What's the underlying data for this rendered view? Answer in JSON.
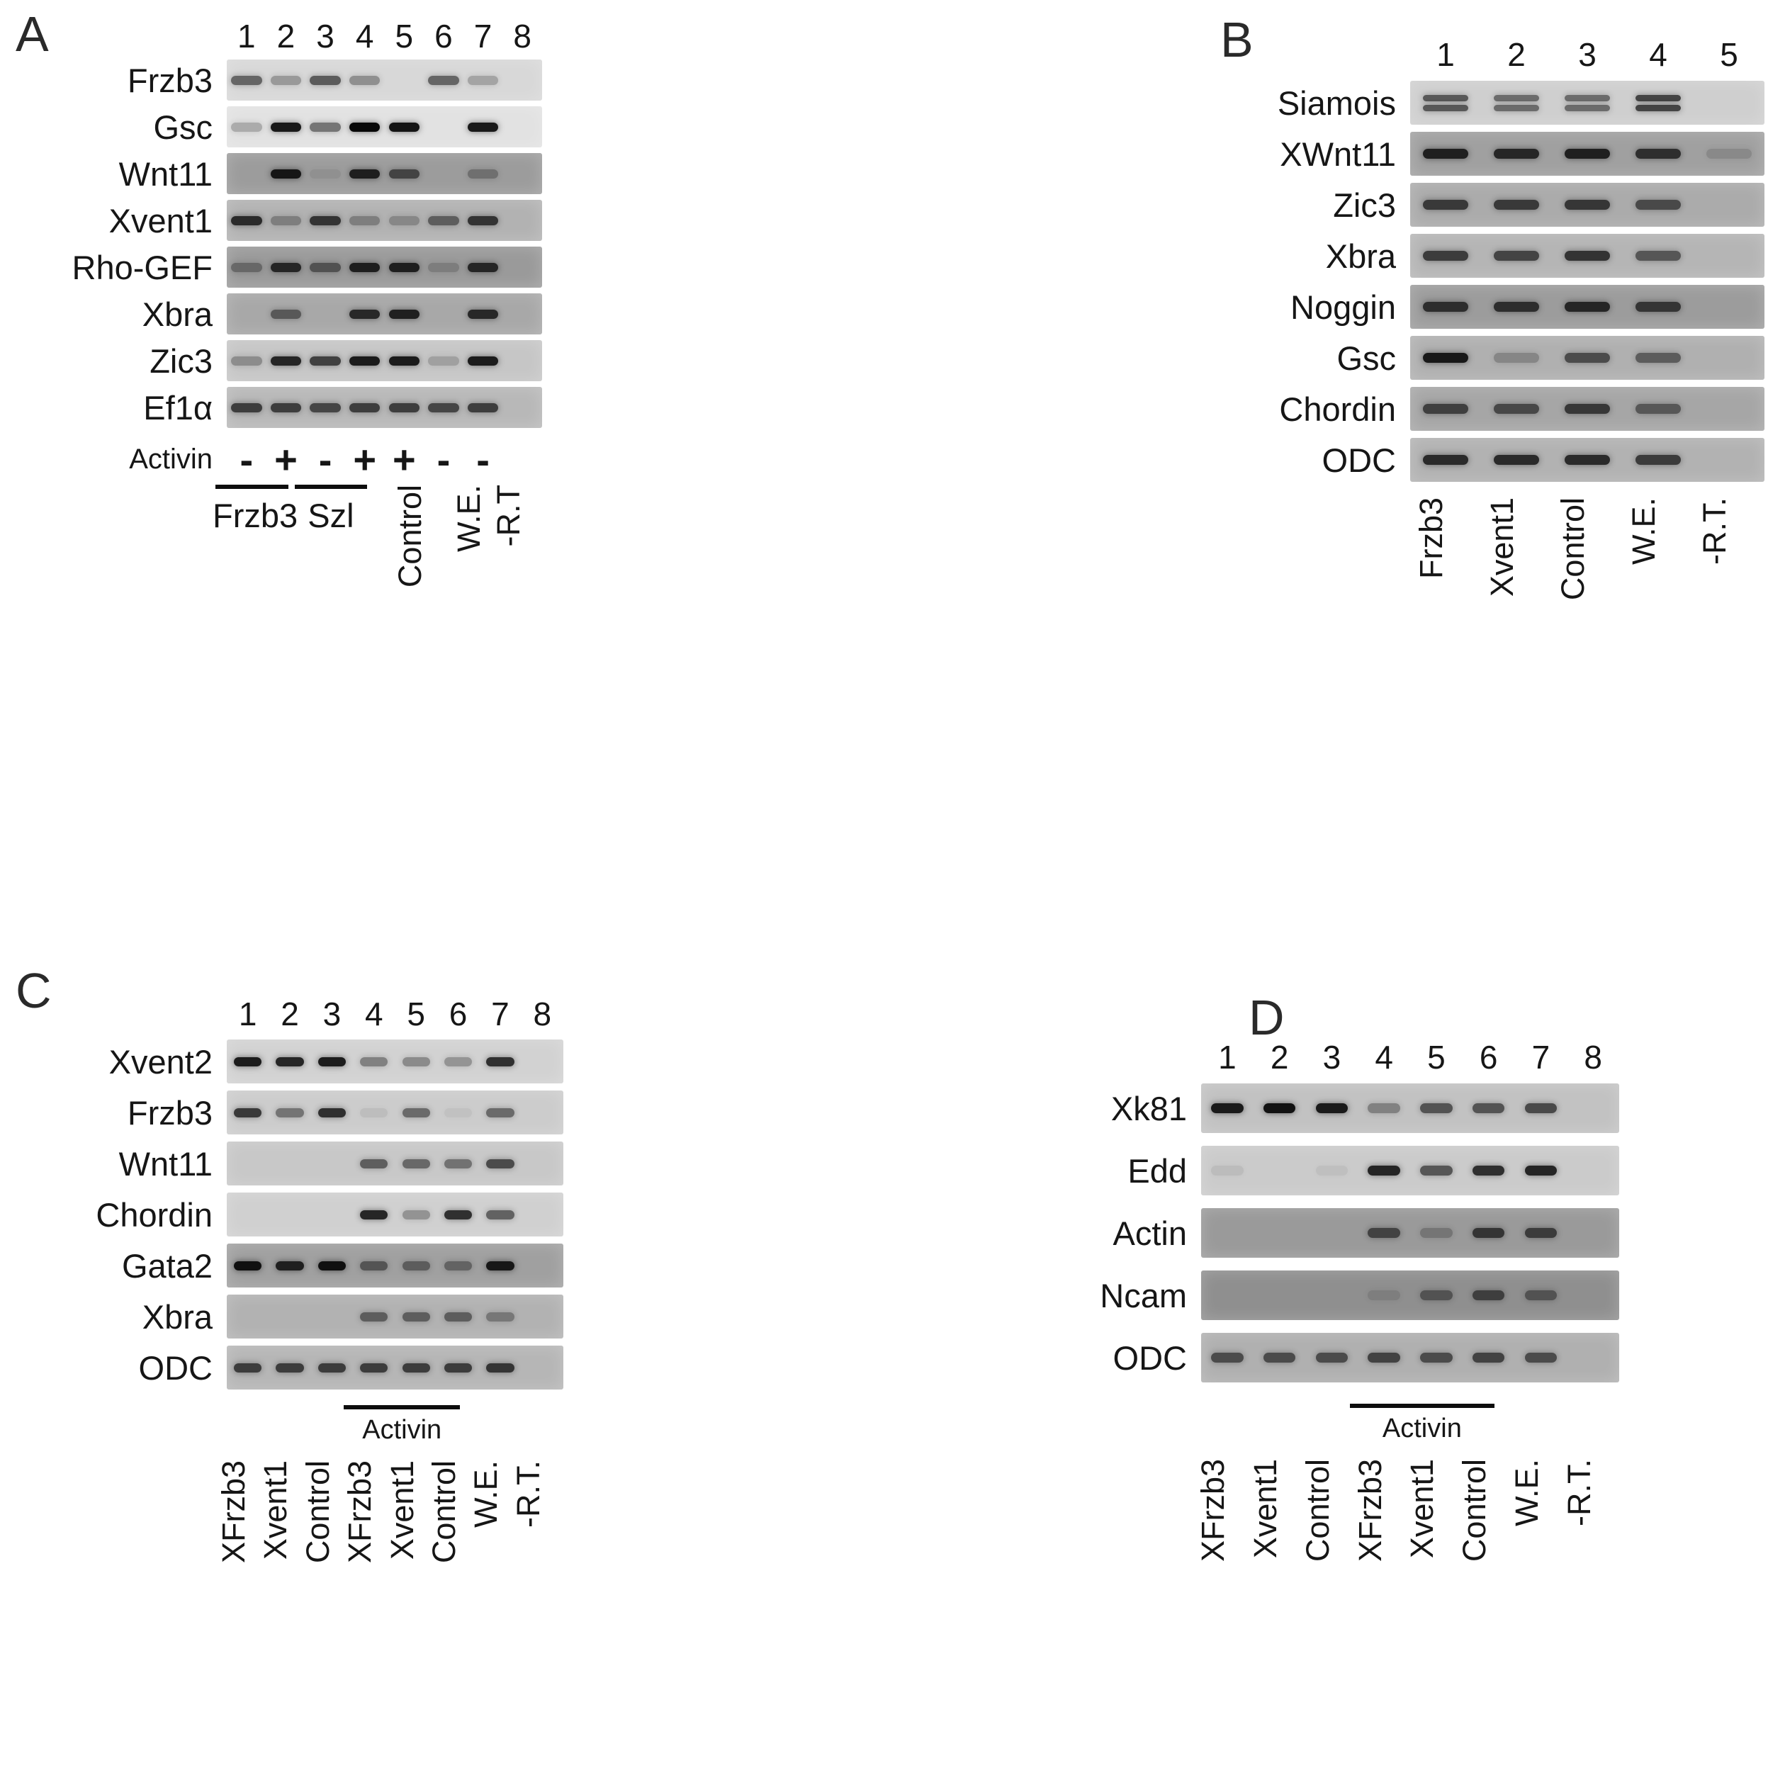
{
  "figure": {
    "description": "RT-PCR gel electrophoresis figure with four panels",
    "background": "#ffffff",
    "band_color": "#0a0a0a"
  },
  "panels": [
    {
      "id": "A",
      "letter": "A",
      "lanes": [
        "1",
        "2",
        "3",
        "4",
        "5",
        "6",
        "7",
        "8"
      ],
      "rows": [
        {
          "label": "Frzb3",
          "bg": "#d8d8d8",
          "bands": [
            0.55,
            0.3,
            0.6,
            0.35,
            0,
            0.55,
            0.25,
            0
          ]
        },
        {
          "label": "Gsc",
          "bg": "#e2e2e2",
          "bands": [
            0.25,
            0.92,
            0.5,
            1.0,
            0.95,
            0,
            0.92,
            0
          ]
        },
        {
          "label": "Wnt11",
          "bg": "#9c9c9c",
          "bands": [
            0,
            0.9,
            0.08,
            0.85,
            0.6,
            0,
            0.3,
            0
          ]
        },
        {
          "label": "Xvent1",
          "bg": "#b2b2b2",
          "bands": [
            0.8,
            0.3,
            0.75,
            0.3,
            0.25,
            0.5,
            0.75,
            0
          ]
        },
        {
          "label": "Rho-GEF",
          "bg": "#9a9a9a",
          "bands": [
            0.35,
            0.8,
            0.5,
            0.85,
            0.85,
            0.2,
            0.8,
            0
          ]
        },
        {
          "label": "Xbra",
          "bg": "#a8a8a8",
          "bands": [
            0,
            0.5,
            0,
            0.8,
            0.85,
            0,
            0.8,
            0
          ]
        },
        {
          "label": "Zic3",
          "bg": "#c6c6c6",
          "bands": [
            0.3,
            0.85,
            0.7,
            0.9,
            0.9,
            0.2,
            0.9,
            0
          ]
        },
        {
          "label": "Ef1α",
          "bg": "#b8b8b8",
          "bands": [
            0.7,
            0.7,
            0.65,
            0.7,
            0.7,
            0.65,
            0.7,
            0
          ]
        }
      ],
      "footer": {
        "treatment_label": "Activin",
        "signs": [
          "-",
          "+",
          "-",
          "+",
          "+",
          "-",
          "-",
          ""
        ],
        "groups": [
          {
            "label": "Frzb3",
            "from": 1,
            "to": 2
          },
          {
            "label": "Szl",
            "from": 3,
            "to": 4
          }
        ],
        "rotated": [
          {
            "label": "Control",
            "lane": 5.5
          },
          {
            "label": "W.E.",
            "lane": 7
          },
          {
            "label": "-R.T",
            "lane": 8
          }
        ]
      }
    },
    {
      "id": "B",
      "letter": "B",
      "lanes": [
        "1",
        "2",
        "3",
        "4",
        "5"
      ],
      "rows": [
        {
          "label": "Siamois",
          "bg": "#cfcfcf",
          "doublet": true,
          "bands": [
            0.6,
            0.5,
            0.5,
            0.7,
            0
          ]
        },
        {
          "label": "XWnt11",
          "bg": "#a0a0a0",
          "bands": [
            0.85,
            0.8,
            0.85,
            0.75,
            0.15
          ]
        },
        {
          "label": "Zic3",
          "bg": "#ababab",
          "bands": [
            0.7,
            0.7,
            0.72,
            0.6,
            0
          ]
        },
        {
          "label": "Xbra",
          "bg": "#b5b5b5",
          "bands": [
            0.7,
            0.65,
            0.75,
            0.55,
            0
          ]
        },
        {
          "label": "Noggin",
          "bg": "#9c9c9c",
          "bands": [
            0.75,
            0.75,
            0.8,
            0.7,
            0
          ]
        },
        {
          "label": "Gsc",
          "bg": "#b0b0b0",
          "bands": [
            0.9,
            0.25,
            0.6,
            0.5,
            0
          ]
        },
        {
          "label": "Chordin",
          "bg": "#a6a6a6",
          "bands": [
            0.65,
            0.6,
            0.7,
            0.5,
            0
          ]
        },
        {
          "label": "ODC",
          "bg": "#b2b2b2",
          "bands": [
            0.8,
            0.8,
            0.8,
            0.7,
            0
          ]
        }
      ],
      "footer": {
        "rotated": [
          {
            "label": "Frzb3",
            "lane": 1
          },
          {
            "label": "Xvent1",
            "lane": 2
          },
          {
            "label": "Control",
            "lane": 3
          },
          {
            "label": "W.E.",
            "lane": 4
          },
          {
            "label": "-R.T.",
            "lane": 5
          }
        ]
      }
    },
    {
      "id": "C",
      "letter": "C",
      "lanes": [
        "1",
        "2",
        "3",
        "4",
        "5",
        "6",
        "7",
        "8"
      ],
      "rows": [
        {
          "label": "Xvent2",
          "bg": "#d2d2d2",
          "bands": [
            0.9,
            0.85,
            0.9,
            0.4,
            0.35,
            0.3,
            0.8,
            0
          ]
        },
        {
          "label": "Frzb3",
          "bg": "#cccccc",
          "bands": [
            0.75,
            0.45,
            0.8,
            0.08,
            0.5,
            0.05,
            0.5,
            0
          ]
        },
        {
          "label": "Wnt11",
          "bg": "#c8c8c8",
          "bands": [
            0,
            0,
            0,
            0.55,
            0.5,
            0.45,
            0.65,
            0
          ]
        },
        {
          "label": "Chordin",
          "bg": "#d0d0d0",
          "bands": [
            0,
            0,
            0,
            0.85,
            0.3,
            0.8,
            0.55,
            0
          ]
        },
        {
          "label": "Gata2",
          "bg": "#a0a0a0",
          "bands": [
            0.95,
            0.85,
            0.95,
            0.5,
            0.45,
            0.4,
            0.9,
            0
          ]
        },
        {
          "label": "Xbra",
          "bg": "#b2b2b2",
          "bands": [
            0,
            0,
            0,
            0.5,
            0.5,
            0.5,
            0.35,
            0
          ]
        },
        {
          "label": "ODC",
          "bg": "#b6b6b6",
          "bands": [
            0.7,
            0.7,
            0.7,
            0.7,
            0.7,
            0.7,
            0.75,
            0
          ]
        }
      ],
      "footer": {
        "treatment_label": "Activin",
        "treatment_span": {
          "from": 4,
          "to": 6
        },
        "rotated": [
          {
            "label": "XFrzb3",
            "lane": 1
          },
          {
            "label": "Xvent1",
            "lane": 2
          },
          {
            "label": "Control",
            "lane": 3
          },
          {
            "label": "XFrzb3",
            "lane": 4
          },
          {
            "label": "Xvent1",
            "lane": 5
          },
          {
            "label": "Control",
            "lane": 6
          },
          {
            "label": "W.E.",
            "lane": 7
          },
          {
            "label": "-R.T.",
            "lane": 8
          }
        ]
      }
    },
    {
      "id": "D",
      "letter": "D",
      "lanes": [
        "1",
        "2",
        "3",
        "4",
        "5",
        "6",
        "7",
        "8"
      ],
      "rows": [
        {
          "label": "Xk81",
          "bg": "#c2c2c2",
          "bands": [
            0.9,
            0.95,
            0.9,
            0.35,
            0.6,
            0.6,
            0.65,
            0
          ]
        },
        {
          "label": "Edd",
          "bg": "#cbcbcb",
          "bands": [
            0.08,
            0,
            0.06,
            0.85,
            0.6,
            0.8,
            0.85,
            0
          ]
        },
        {
          "label": "Actin",
          "bg": "#9a9a9a",
          "bands": [
            0,
            0,
            0,
            0.6,
            0.25,
            0.7,
            0.65,
            0
          ]
        },
        {
          "label": "Ncam",
          "bg": "#8f8f8f",
          "bands": [
            0,
            0,
            0,
            0.12,
            0.45,
            0.6,
            0.45,
            0
          ]
        },
        {
          "label": "ODC",
          "bg": "#b0b0b0",
          "bands": [
            0.6,
            0.6,
            0.6,
            0.65,
            0.6,
            0.65,
            0.6,
            0
          ]
        }
      ],
      "footer": {
        "treatment_label": "Activin",
        "treatment_span": {
          "from": 4,
          "to": 6
        },
        "rotated": [
          {
            "label": "XFrzb3",
            "lane": 1
          },
          {
            "label": "Xvent1",
            "lane": 2
          },
          {
            "label": "Control",
            "lane": 3
          },
          {
            "label": "XFrzb3",
            "lane": 4
          },
          {
            "label": "Xvent1",
            "lane": 5
          },
          {
            "label": "Control",
            "lane": 6
          },
          {
            "label": "W.E.",
            "lane": 7
          },
          {
            "label": "-R.T.",
            "lane": 8
          }
        ]
      }
    }
  ]
}
